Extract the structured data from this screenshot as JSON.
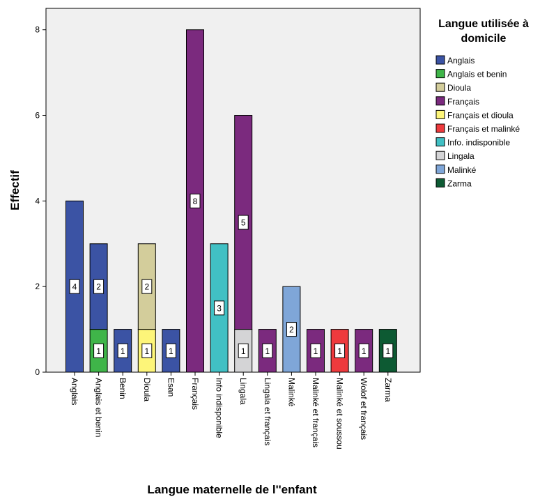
{
  "chart_data": {
    "type": "bar",
    "stacked": true,
    "xlabel": "Langue maternelle de l''enfant",
    "ylabel": "Effectif",
    "ylim": [
      0,
      8.5
    ],
    "yticks": [
      0,
      2,
      4,
      6,
      8
    ],
    "grid": false,
    "legend_title_lines": [
      "Langue utilisée à",
      "domicile"
    ],
    "legend_position": "right",
    "categories": [
      "Anglais",
      "Anglais et benin",
      "Benin",
      "Dioula",
      "Esan",
      "Français",
      "Info indisponible",
      "Lingala",
      "Lingala et français",
      "Malinké",
      "Malinké et français",
      "Malinké et soussou",
      "Wolof et français",
      "Zarma"
    ],
    "series": [
      {
        "name": "Anglais",
        "color": "#3b53a4",
        "values": [
          4,
          2,
          1,
          0,
          1,
          0,
          0,
          0,
          0,
          0,
          0,
          0,
          0,
          0
        ]
      },
      {
        "name": "Anglais et benin",
        "color": "#3fb549",
        "values": [
          0,
          1,
          0,
          0,
          0,
          0,
          0,
          0,
          0,
          0,
          0,
          0,
          0,
          0
        ]
      },
      {
        "name": "Dioula",
        "color": "#d3cd9b",
        "values": [
          0,
          0,
          0,
          2,
          0,
          0,
          0,
          0,
          0,
          0,
          0,
          0,
          0,
          0
        ]
      },
      {
        "name": "Français",
        "color": "#7b2a7e",
        "values": [
          0,
          0,
          0,
          0,
          0,
          8,
          0,
          5,
          1,
          0,
          1,
          0,
          1,
          0
        ]
      },
      {
        "name": "Français et dioula",
        "color": "#fdf579",
        "values": [
          0,
          0,
          0,
          1,
          0,
          0,
          0,
          0,
          0,
          0,
          0,
          0,
          0,
          0
        ]
      },
      {
        "name": "Français et malinké",
        "color": "#ee3a3d",
        "values": [
          0,
          0,
          0,
          0,
          0,
          0,
          0,
          0,
          0,
          0,
          0,
          1,
          0,
          0
        ]
      },
      {
        "name": "Info. indisponible",
        "color": "#41c0c4",
        "values": [
          0,
          0,
          0,
          0,
          0,
          0,
          3,
          0,
          0,
          0,
          0,
          0,
          0,
          0
        ]
      },
      {
        "name": "Lingala",
        "color": "#d4d4d6",
        "values": [
          0,
          0,
          0,
          0,
          0,
          0,
          0,
          1,
          0,
          0,
          0,
          0,
          0,
          0
        ]
      },
      {
        "name": "Malinké",
        "color": "#7fa6d8",
        "values": [
          0,
          0,
          0,
          0,
          0,
          0,
          0,
          0,
          0,
          2,
          0,
          0,
          0,
          0
        ]
      },
      {
        "name": "Zarma",
        "color": "#0d5a33",
        "values": [
          0,
          0,
          0,
          0,
          0,
          0,
          0,
          0,
          0,
          0,
          0,
          0,
          0,
          1
        ]
      }
    ],
    "stack_order": [
      "Anglais et benin",
      "Français et dioula",
      "Lingala",
      "Anglais",
      "Français",
      "Info. indisponible",
      "Malinké",
      "Français et malinké",
      "Zarma",
      "Dioula"
    ],
    "plot_background": "#f0f0f0"
  }
}
